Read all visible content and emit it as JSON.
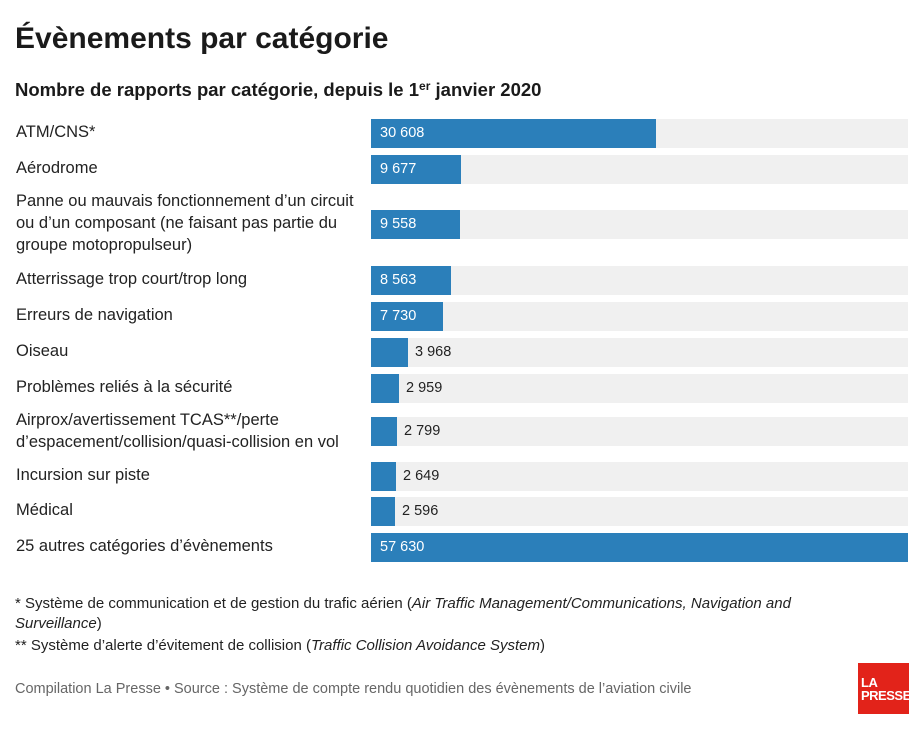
{
  "header": {
    "title": "Évènements par catégorie",
    "subtitle_main": "Nombre de rapports par catégorie, depuis le 1",
    "subtitle_sup": "er",
    "subtitle_tail": " janvier 2020"
  },
  "chart_data": {
    "type": "bar",
    "orientation": "horizontal",
    "title": "Évènements par catégorie",
    "subtitle": "Nombre de rapports par catégorie, depuis le 1er janvier 2020",
    "categories": [
      "ATM/CNS*",
      "Aérodrome",
      "Panne ou mauvais fonctionnement d’un circuit ou d’un composant (ne faisant pas partie du groupe motopropulseur)",
      "Atterrissage trop court/trop long",
      "Erreurs de navigation",
      "Oiseau",
      "Problèmes reliés à la sécurité",
      "Airprox/avertissement TCAS**/perte d’espacement/collision/quasi-collision en vol",
      "Incursion sur piste",
      "Médical",
      "25 autres catégories d’évènements"
    ],
    "values": [
      30608,
      9677,
      9558,
      8563,
      7730,
      3968,
      2959,
      2799,
      2649,
      2596,
      57630
    ],
    "value_labels": [
      "30 608",
      "9 677",
      "9 558",
      "8 563",
      "7 730",
      "3 968",
      "2 959",
      "2 799",
      "2 649",
      "2 596",
      "57 630"
    ],
    "xlim": [
      0,
      57630
    ],
    "grid": false,
    "legend": "none",
    "bar_color": "#2b7fba",
    "track_color": "#f0f0f0"
  },
  "footnotes": {
    "note1_plain": "* Système de communication et de gestion du trafic aérien (",
    "note1_italic": "Air Traffic Management/Communications, Navigation and Surveillance",
    "note1_end": ")",
    "note2_plain": "** Système d’alerte d’évitement de collision (",
    "note2_italic": "Traffic Collision Avoidance System",
    "note2_end": ")"
  },
  "source": "Compilation La Presse • Source : Système de compte rendu quotidien des évènements de l’aviation civile",
  "logo": {
    "line1": "LA",
    "line2": "PRESSE",
    "color": "#e2231a"
  }
}
